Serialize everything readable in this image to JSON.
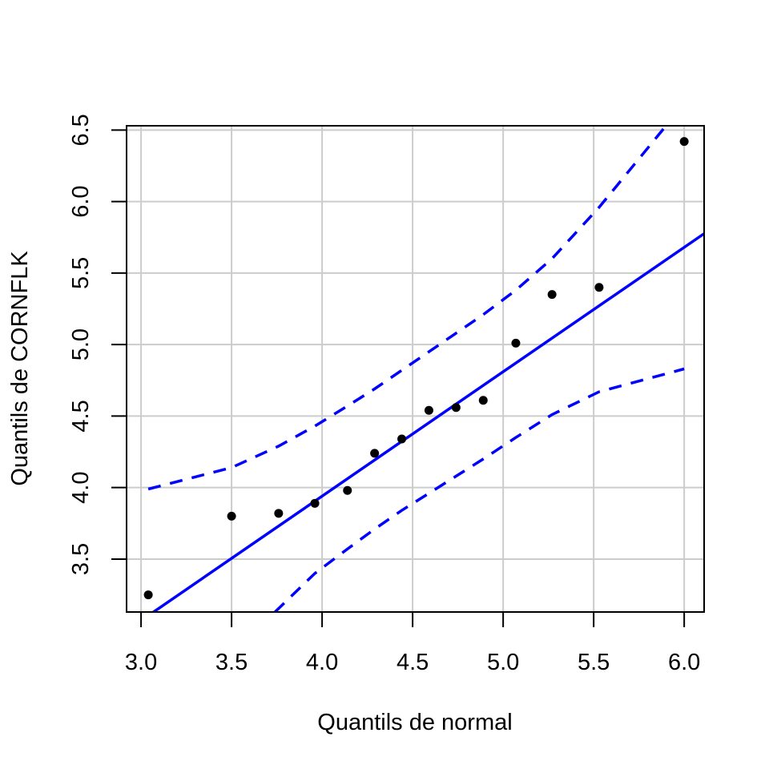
{
  "chart_data": {
    "type": "scatter",
    "title": "",
    "xlabel": "Quantils de normal",
    "ylabel": "Quantils de CORNFLK",
    "xlim": [
      2.92,
      6.11
    ],
    "ylim": [
      3.13,
      6.53
    ],
    "xticks": [
      3.0,
      3.5,
      4.0,
      4.5,
      5.0,
      5.5,
      6.0
    ],
    "yticks": [
      3.5,
      4.0,
      4.5,
      5.0,
      5.5,
      6.0,
      6.5
    ],
    "xtick_labels": [
      "3.0",
      "3.5",
      "4.0",
      "4.5",
      "5.0",
      "5.5",
      "6.0"
    ],
    "ytick_labels": [
      "3.5",
      "4.0",
      "4.5",
      "5.0",
      "5.5",
      "6.0",
      "6.5"
    ],
    "grid": true,
    "points": [
      {
        "x": 3.04,
        "y": 3.25
      },
      {
        "x": 3.5,
        "y": 3.8
      },
      {
        "x": 3.76,
        "y": 3.82
      },
      {
        "x": 3.96,
        "y": 3.89
      },
      {
        "x": 4.14,
        "y": 3.98
      },
      {
        "x": 4.29,
        "y": 4.24
      },
      {
        "x": 4.44,
        "y": 4.34
      },
      {
        "x": 4.59,
        "y": 4.54
      },
      {
        "x": 4.74,
        "y": 4.56
      },
      {
        "x": 4.89,
        "y": 4.61
      },
      {
        "x": 5.07,
        "y": 5.01
      },
      {
        "x": 5.27,
        "y": 5.35
      },
      {
        "x": 5.53,
        "y": 5.4
      },
      {
        "x": 6.0,
        "y": 6.42
      }
    ],
    "reference_line": {
      "slope": 0.87,
      "intercept": 0.46,
      "color": "#0000ff"
    },
    "upper_band": [
      {
        "x": 3.04,
        "y": 3.99
      },
      {
        "x": 3.5,
        "y": 4.14
      },
      {
        "x": 3.76,
        "y": 4.29
      },
      {
        "x": 3.96,
        "y": 4.43
      },
      {
        "x": 4.14,
        "y": 4.57
      },
      {
        "x": 4.29,
        "y": 4.69
      },
      {
        "x": 4.44,
        "y": 4.82
      },
      {
        "x": 4.59,
        "y": 4.95
      },
      {
        "x": 4.74,
        "y": 5.08
      },
      {
        "x": 4.89,
        "y": 5.21
      },
      {
        "x": 5.07,
        "y": 5.38
      },
      {
        "x": 5.27,
        "y": 5.6
      },
      {
        "x": 5.53,
        "y": 5.96
      },
      {
        "x": 5.9,
        "y": 6.53
      }
    ],
    "lower_band": [
      {
        "x": 3.74,
        "y": 3.13
      },
      {
        "x": 3.96,
        "y": 3.4
      },
      {
        "x": 4.14,
        "y": 3.57
      },
      {
        "x": 4.29,
        "y": 3.71
      },
      {
        "x": 4.44,
        "y": 3.84
      },
      {
        "x": 4.59,
        "y": 3.96
      },
      {
        "x": 4.74,
        "y": 4.08
      },
      {
        "x": 4.89,
        "y": 4.2
      },
      {
        "x": 5.07,
        "y": 4.35
      },
      {
        "x": 5.27,
        "y": 4.51
      },
      {
        "x": 5.53,
        "y": 4.67
      },
      {
        "x": 6.0,
        "y": 4.83
      }
    ],
    "band_color": "#0000ff",
    "point_color": "#000000",
    "grid_color": "#cccccc"
  }
}
